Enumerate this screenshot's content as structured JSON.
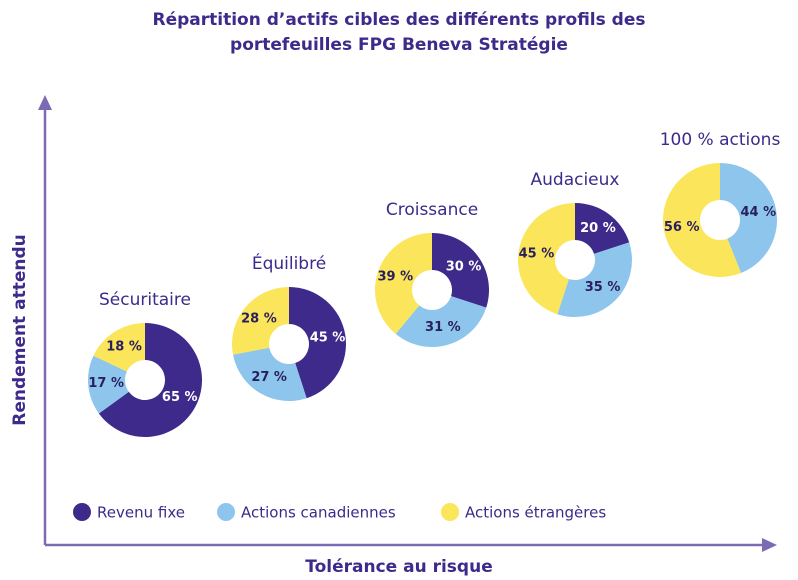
{
  "chart_data": {
    "type": "donut",
    "title": "Répartition d’actifs cibles des différents profils des portefeuilles FPG Beneva Stratégie",
    "x_label": "Tolérance au risque",
    "y_label": "Rendement attendu",
    "categories": [
      "Sécuritaire",
      "Équilibré",
      "Croissance",
      "Audacieux",
      "100 % actions"
    ],
    "series": [
      {
        "name": "Revenu fixe",
        "color": "#3d2a8a",
        "values": [
          65,
          45,
          30,
          20,
          0
        ],
        "value_labels": [
          "65 %",
          "45 %",
          "30 %",
          "20 %",
          null
        ]
      },
      {
        "name": "Actions canadiennes",
        "color": "#8ec5ec",
        "values": [
          17,
          27,
          31,
          35,
          44
        ],
        "value_labels": [
          "17 %",
          "27 %",
          "31 %",
          "35 %",
          "44 %"
        ]
      },
      {
        "name": "Actions étrangères",
        "color": "#fbe55a",
        "values": [
          18,
          28,
          39,
          45,
          56
        ],
        "value_labels": [
          "18 %",
          "28 %",
          "39 %",
          "45 %",
          "56 %"
        ]
      }
    ],
    "legend": "bottom-left"
  }
}
